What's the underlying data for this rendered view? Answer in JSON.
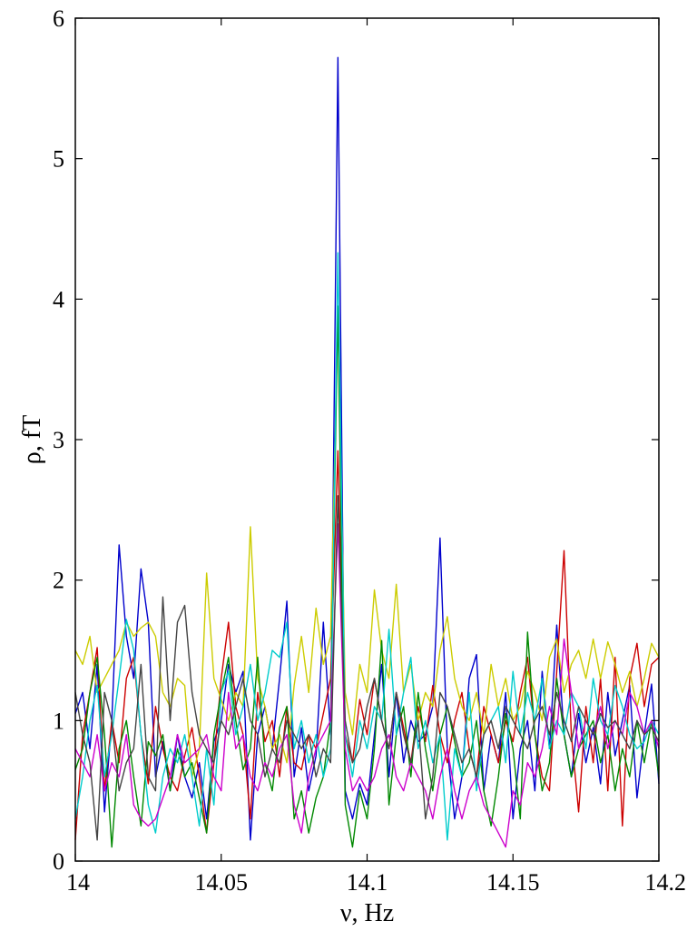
{
  "chart_data": {
    "type": "line",
    "title": "",
    "xlabel": "ν, Hz",
    "ylabel": "ρ, fT",
    "xlim": [
      14,
      14.2
    ],
    "ylim": [
      0,
      6
    ],
    "x_ticks": [
      14,
      14.05,
      14.1,
      14.15,
      14.2
    ],
    "x_tick_labels": [
      "14",
      "14.05",
      "14.1",
      "14.15",
      "14.2"
    ],
    "y_ticks": [
      0,
      1,
      2,
      3,
      4,
      5,
      6
    ],
    "y_tick_labels": [
      "0",
      "1",
      "2",
      "3",
      "4",
      "5",
      "6"
    ],
    "grid": false,
    "legend": "none",
    "x": [
      14.0,
      14.0025,
      14.005,
      14.0075,
      14.01,
      14.0125,
      14.015,
      14.0175,
      14.02,
      14.0225,
      14.025,
      14.0275,
      14.03,
      14.0325,
      14.035,
      14.0375,
      14.04,
      14.0425,
      14.045,
      14.0475,
      14.05,
      14.0525,
      14.055,
      14.0575,
      14.06,
      14.0625,
      14.065,
      14.0675,
      14.07,
      14.0725,
      14.075,
      14.0775,
      14.08,
      14.0825,
      14.085,
      14.0875,
      14.09,
      14.0925,
      14.095,
      14.0975,
      14.1,
      14.1025,
      14.105,
      14.1075,
      14.11,
      14.1125,
      14.115,
      14.1175,
      14.12,
      14.1225,
      14.125,
      14.1275,
      14.13,
      14.1325,
      14.135,
      14.1375,
      14.14,
      14.1425,
      14.145,
      14.1475,
      14.15,
      14.1525,
      14.155,
      14.1575,
      14.16,
      14.1625,
      14.165,
      14.1675,
      14.17,
      14.1725,
      14.175,
      14.1775,
      14.18,
      14.1825,
      14.185,
      14.1875,
      14.19,
      14.1925,
      14.195,
      14.1975,
      14.2
    ],
    "series": [
      {
        "color": "#0000cc",
        "values": [
          1.05,
          1.2,
          0.8,
          1.4,
          0.35,
          1.0,
          2.25,
          1.6,
          1.3,
          2.08,
          1.7,
          0.6,
          0.85,
          0.5,
          0.9,
          0.6,
          0.45,
          0.7,
          0.3,
          0.85,
          1.0,
          1.4,
          1.2,
          1.35,
          0.15,
          0.9,
          1.1,
          0.8,
          1.3,
          1.85,
          0.6,
          0.95,
          0.5,
          0.75,
          1.7,
          0.9,
          5.72,
          0.5,
          0.3,
          0.55,
          0.4,
          0.9,
          1.4,
          0.6,
          1.2,
          0.7,
          1.0,
          0.85,
          0.9,
          1.1,
          2.3,
          0.8,
          0.3,
          0.6,
          1.3,
          1.47,
          0.5,
          0.9,
          0.7,
          1.2,
          0.3,
          0.8,
          1.0,
          0.5,
          1.35,
          0.8,
          1.68,
          0.9,
          0.6,
          1.05,
          0.7,
          0.95,
          0.55,
          1.2,
          0.75,
          1.0,
          1.25,
          0.45,
          0.9,
          1.26,
          0.55
        ]
      },
      {
        "color": "#cc0000",
        "values": [
          0.15,
          0.9,
          1.2,
          1.52,
          0.5,
          1.0,
          0.7,
          1.3,
          1.45,
          0.9,
          0.55,
          1.1,
          0.8,
          0.6,
          0.5,
          0.75,
          0.95,
          0.6,
          0.2,
          0.7,
          1.3,
          1.7,
          1.1,
          0.9,
          0.3,
          1.2,
          0.85,
          1.0,
          0.6,
          1.1,
          0.7,
          0.65,
          0.9,
          0.8,
          1.05,
          1.3,
          2.92,
          0.9,
          0.7,
          1.15,
          0.9,
          1.3,
          1.0,
          0.8,
          1.2,
          0.95,
          0.7,
          1.1,
          0.85,
          1.25,
          0.9,
          0.7,
          1.0,
          1.2,
          0.8,
          0.6,
          1.1,
          0.9,
          0.7,
          1.0,
          0.85,
          1.2,
          1.45,
          0.9,
          0.6,
          0.5,
          1.35,
          2.21,
          0.9,
          0.35,
          1.1,
          0.7,
          1.3,
          0.5,
          1.45,
          0.25,
          1.3,
          1.55,
          1.1,
          1.4,
          1.45
        ]
      },
      {
        "color": "#cccc00",
        "values": [
          1.5,
          1.4,
          1.6,
          1.2,
          1.3,
          1.4,
          1.5,
          1.7,
          1.6,
          1.66,
          1.7,
          1.6,
          1.2,
          1.1,
          1.3,
          1.25,
          0.6,
          0.8,
          2.05,
          1.3,
          1.15,
          1.0,
          1.2,
          1.1,
          2.38,
          1.3,
          1.1,
          0.8,
          0.9,
          0.7,
          1.25,
          1.6,
          1.2,
          1.8,
          1.4,
          1.6,
          3.9,
          1.2,
          0.9,
          1.4,
          1.2,
          1.93,
          1.5,
          1.3,
          1.97,
          1.2,
          1.4,
          1.0,
          1.2,
          1.1,
          1.5,
          1.74,
          1.3,
          1.1,
          1.0,
          1.2,
          0.9,
          1.4,
          1.1,
          1.3,
          1.0,
          1.1,
          1.35,
          1.2,
          1.0,
          1.45,
          1.58,
          1.2,
          1.4,
          1.5,
          1.3,
          1.58,
          1.3,
          1.56,
          1.4,
          1.2,
          1.35,
          1.1,
          1.3,
          1.55,
          1.45
        ]
      },
      {
        "color": "#008800",
        "values": [
          0.65,
          0.8,
          1.2,
          1.45,
          0.9,
          0.1,
          0.8,
          1.0,
          0.6,
          0.25,
          0.85,
          0.75,
          0.9,
          0.5,
          0.8,
          0.6,
          0.7,
          0.45,
          0.2,
          0.9,
          1.2,
          1.45,
          1.0,
          0.65,
          0.8,
          1.45,
          0.7,
          0.5,
          0.95,
          1.1,
          0.3,
          0.5,
          0.2,
          0.45,
          0.6,
          1.0,
          3.95,
          0.4,
          0.1,
          0.5,
          0.3,
          0.8,
          1.57,
          0.4,
          0.9,
          1.1,
          0.6,
          1.2,
          0.8,
          0.5,
          0.9,
          1.1,
          0.85,
          0.6,
          0.7,
          1.0,
          0.5,
          0.25,
          0.6,
          1.05,
          0.8,
          0.3,
          1.63,
          0.9,
          0.5,
          0.7,
          1.3,
          0.9,
          0.6,
          0.8,
          0.9,
          1.0,
          0.7,
          0.9,
          0.5,
          0.8,
          0.6,
          1.0,
          0.7,
          1.0,
          0.6
        ]
      },
      {
        "color": "#00cccc",
        "values": [
          0.3,
          0.6,
          1.0,
          1.25,
          0.6,
          0.9,
          1.3,
          1.72,
          1.5,
          0.9,
          0.4,
          0.2,
          0.6,
          0.8,
          0.7,
          0.9,
          0.6,
          0.25,
          0.8,
          0.4,
          1.2,
          1.35,
          0.9,
          1.1,
          1.4,
          1.0,
          1.2,
          1.5,
          1.45,
          1.7,
          0.8,
          1.0,
          0.7,
          0.9,
          0.6,
          0.8,
          4.33,
          0.9,
          0.6,
          1.0,
          0.8,
          1.1,
          1.0,
          1.65,
          0.9,
          1.2,
          1.45,
          0.8,
          1.0,
          0.7,
          0.9,
          0.15,
          0.8,
          0.6,
          1.2,
          0.5,
          0.9,
          1.0,
          1.1,
          0.7,
          1.35,
          0.9,
          1.2,
          1.0,
          1.3,
          0.8,
          1.0,
          0.9,
          1.2,
          1.1,
          0.8,
          1.3,
          1.0,
          0.9,
          1.25,
          1.1,
          0.9,
          0.8,
          0.85,
          1.0,
          0.9
        ]
      },
      {
        "color": "#cc00cc",
        "values": [
          0.8,
          0.7,
          0.6,
          0.9,
          0.5,
          0.7,
          0.6,
          0.9,
          0.4,
          0.3,
          0.25,
          0.3,
          0.45,
          0.6,
          0.9,
          0.7,
          0.75,
          0.8,
          0.9,
          0.6,
          0.5,
          1.2,
          0.8,
          0.9,
          0.6,
          0.5,
          0.7,
          0.6,
          0.8,
          0.9,
          0.4,
          0.2,
          0.6,
          0.8,
          0.9,
          1.0,
          2.4,
          0.8,
          0.5,
          0.6,
          0.5,
          0.6,
          0.8,
          0.9,
          0.6,
          0.5,
          0.7,
          0.6,
          0.5,
          0.3,
          0.6,
          0.8,
          0.5,
          0.3,
          0.5,
          0.6,
          0.4,
          0.3,
          0.2,
          0.1,
          0.5,
          0.4,
          0.7,
          0.6,
          0.8,
          1.1,
          0.9,
          1.58,
          1.2,
          0.8,
          1.0,
          0.9,
          1.1,
          0.8,
          1.0,
          0.9,
          1.2,
          1.1,
          0.9,
          1.0,
          0.8
        ]
      },
      {
        "color": "#444444",
        "values": [
          1.2,
          0.9,
          0.7,
          0.15,
          1.2,
          1.0,
          0.5,
          0.7,
          0.8,
          1.4,
          0.6,
          0.5,
          1.88,
          1.0,
          1.7,
          1.82,
          1.2,
          0.9,
          0.8,
          0.7,
          1.0,
          0.9,
          1.1,
          1.3,
          1.0,
          0.9,
          0.6,
          0.8,
          0.7,
          1.0,
          0.9,
          0.8,
          0.9,
          0.6,
          0.8,
          0.7,
          2.6,
          1.0,
          0.7,
          0.8,
          1.1,
          1.3,
          1.0,
          0.8,
          1.2,
          0.9,
          0.7,
          1.0,
          0.3,
          0.6,
          1.2,
          1.1,
          0.9,
          0.7,
          0.8,
          0.6,
          0.9,
          1.0,
          0.8,
          1.1,
          1.0,
          0.9,
          0.8,
          1.0,
          1.1,
          0.9,
          1.2,
          1.0,
          0.85,
          1.1,
          1.0,
          0.9,
          1.05,
          0.95,
          1.0,
          0.9,
          0.8,
          1.0,
          0.9,
          0.95,
          0.85
        ]
      }
    ]
  }
}
